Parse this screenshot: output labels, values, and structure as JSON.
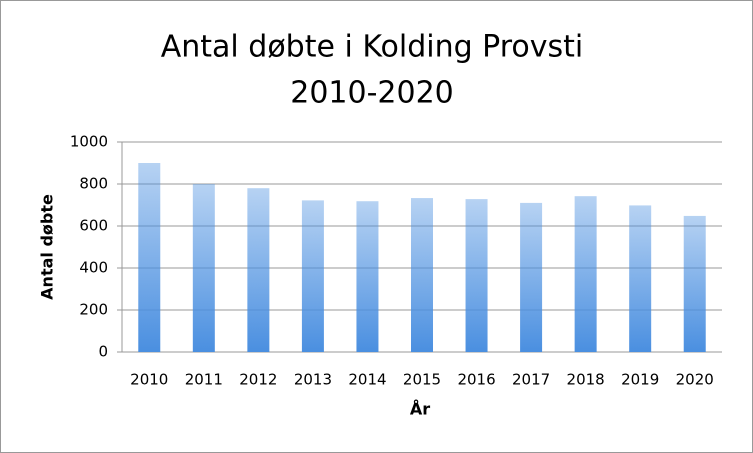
{
  "chart_data": {
    "type": "bar",
    "title": [
      "Antal døbte i Kolding Provsti",
      "2010-2020"
    ],
    "x_label": "År",
    "y_label": "Antal døbte",
    "categories": [
      "2010",
      "2011",
      "2012",
      "2013",
      "2014",
      "2015",
      "2016",
      "2017",
      "2018",
      "2019",
      "2020"
    ],
    "values": [
      900,
      800,
      780,
      722,
      718,
      733,
      728,
      710,
      742,
      698,
      648
    ],
    "color": "#4a8fe0",
    "ylim": [
      0,
      1000
    ],
    "yticks": [
      0,
      200,
      400,
      600,
      800,
      1000
    ],
    "grid": true
  }
}
